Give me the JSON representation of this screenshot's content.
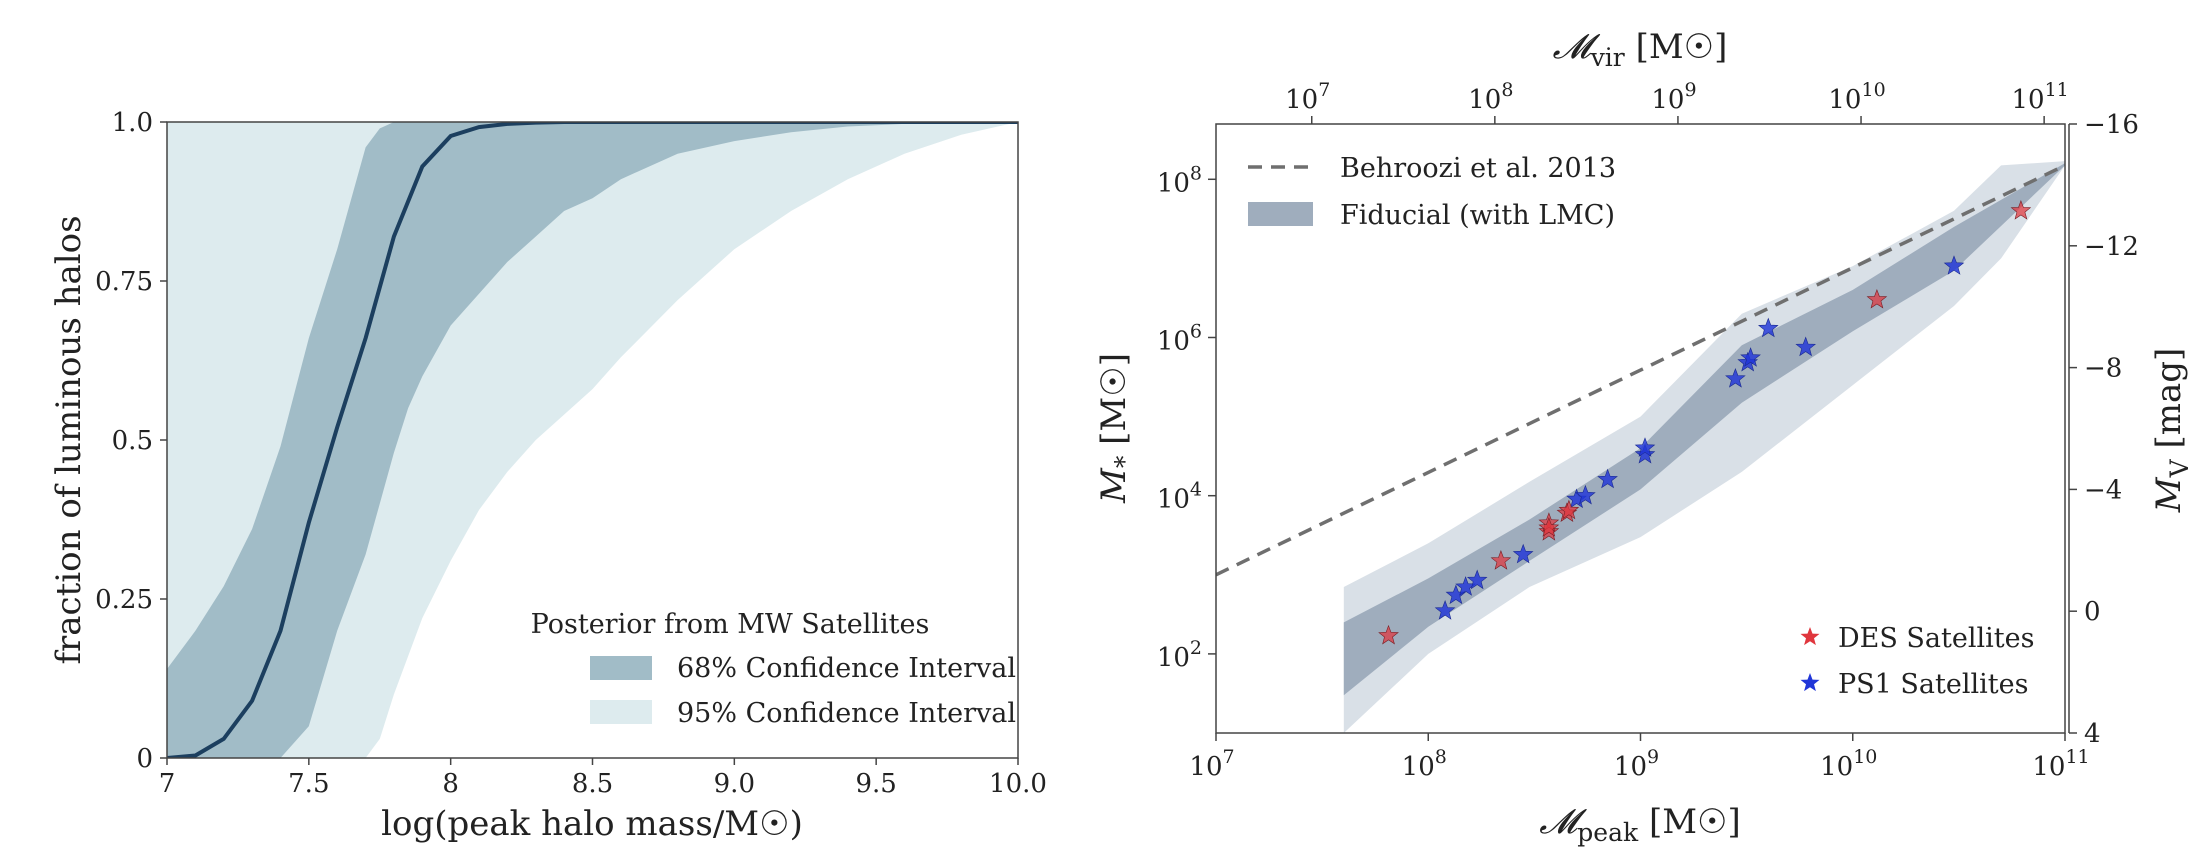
{
  "chart_data": [
    {
      "type": "area",
      "xlabel": "log(peak halo mass/M☉)",
      "ylabel": "fraction of luminous halos",
      "xlim": [
        7,
        10
      ],
      "ylim": [
        0,
        1
      ],
      "x_ticks": [
        "7",
        "7.5",
        "8",
        "8.5",
        "9.0",
        "9.5",
        "10.0"
      ],
      "y_ticks": [
        "0",
        "0.25",
        "0.5",
        "0.75",
        "1.0"
      ],
      "legend": {
        "title": "Posterior from MW Satellites",
        "entries": [
          "68% Confidence Interval",
          "95% Confidence Interval"
        ],
        "placement": "lower-right"
      },
      "colors": {
        "band95": "#ddebee",
        "band68": "#a1bcc7",
        "median": "#1c3f5f"
      },
      "series": [
        {
          "x": [
            7.0,
            7.1,
            7.2,
            7.3,
            7.4,
            7.5,
            7.6,
            7.7,
            7.8,
            7.9,
            8.0,
            8.1,
            8.2,
            8.3,
            8.4,
            8.5,
            8.7,
            9.0,
            9.5,
            10.0
          ],
          "y": [
            0.0,
            0.004,
            0.03,
            0.09,
            0.2,
            0.37,
            0.52,
            0.66,
            0.82,
            0.93,
            0.978,
            0.992,
            0.997,
            0.999,
            1.0,
            1.0,
            1.0,
            1.0,
            1.0,
            1.0
          ]
        },
        {
          "x": [
            7.0,
            7.1,
            7.2,
            7.3,
            7.4,
            7.5,
            7.6,
            7.7,
            7.75,
            7.8,
            7.85,
            7.9,
            8.0,
            8.1,
            8.2,
            8.3,
            8.4,
            8.5,
            8.6,
            8.8,
            9.0,
            9.2,
            9.4,
            9.6,
            10.0
          ],
          "lower": [
            0,
            0,
            0,
            0,
            0,
            0.05,
            0.2,
            0.32,
            0.4,
            0.48,
            0.55,
            0.6,
            0.68,
            0.73,
            0.78,
            0.82,
            0.86,
            0.88,
            0.91,
            0.95,
            0.97,
            0.984,
            0.993,
            0.997,
            1.0
          ],
          "upper": [
            0.14,
            0.2,
            0.27,
            0.36,
            0.49,
            0.66,
            0.8,
            0.96,
            0.99,
            1.0,
            1.0,
            1.0,
            1.0,
            1.0,
            1.0,
            1.0,
            1.0,
            1.0,
            1.0,
            1.0,
            1.0,
            1.0,
            1.0,
            1.0,
            1.0
          ]
        },
        {
          "x": [
            7.0,
            7.5,
            7.6,
            7.7,
            7.75,
            7.8,
            7.9,
            8.0,
            8.1,
            8.2,
            8.3,
            8.4,
            8.5,
            8.6,
            8.8,
            9.0,
            9.2,
            9.4,
            9.6,
            9.8,
            10.0
          ],
          "lower": [
            0,
            0,
            0,
            0,
            0.03,
            0.1,
            0.22,
            0.31,
            0.39,
            0.45,
            0.5,
            0.54,
            0.58,
            0.63,
            0.72,
            0.8,
            0.86,
            0.91,
            0.95,
            0.98,
            1.0
          ],
          "upper": [
            1,
            1,
            1,
            1,
            1,
            1,
            1,
            1,
            1,
            1,
            1,
            1,
            1,
            1,
            1,
            1,
            1,
            1,
            1,
            1,
            1
          ]
        }
      ]
    },
    {
      "type": "scatter",
      "xlabel": "𝓜",
      "xlabel_sub": "peak",
      "xlabel_unit": " [M☉]",
      "top_xlabel": "𝓜",
      "top_xlabel_sub": "vir",
      "top_xlabel_unit": " [M☉]",
      "ylabel": "M",
      "ylabel_sub": "*",
      "ylabel_unit": " [M☉]",
      "right_ylabel": "M",
      "right_ylabel_sub": "V",
      "right_ylabel_unit": " [mag]",
      "xscale": "log",
      "yscale": "log",
      "xlim": [
        10000000,
        100000000000
      ],
      "ylim": [
        10,
        500000000
      ],
      "top_xlim": [
        3000000,
        130000000000
      ],
      "right_ylim": [
        -16,
        4
      ],
      "x_ticks": [
        {
          "base": "10",
          "exp": "7"
        },
        {
          "base": "10",
          "exp": "8"
        },
        {
          "base": "10",
          "exp": "9"
        },
        {
          "base": "10",
          "exp": "10"
        },
        {
          "base": "10",
          "exp": "11"
        }
      ],
      "top_x_ticks": [
        {
          "base": "10",
          "exp": "7"
        },
        {
          "base": "10",
          "exp": "8"
        },
        {
          "base": "10",
          "exp": "9"
        },
        {
          "base": "10",
          "exp": "10"
        },
        {
          "base": "10",
          "exp": "11"
        }
      ],
      "y_ticks": [
        {
          "base": "10",
          "exp": "2"
        },
        {
          "base": "10",
          "exp": "4"
        },
        {
          "base": "10",
          "exp": "6"
        },
        {
          "base": "10",
          "exp": "8"
        }
      ],
      "right_y_ticks": [
        "−16",
        "−12",
        "−8",
        "−4",
        "0",
        "4"
      ],
      "legend_upper": {
        "entries": [
          "Behroozi et al. 2013",
          "Fiducial (with LMC)"
        ],
        "placement": "upper-left"
      },
      "legend_lower": {
        "entries": [
          "DES Satellites",
          "PS1 Satellites"
        ],
        "placement": "lower-right"
      },
      "colors": {
        "band95": "#d9e0e7",
        "band68": "#9fadbd",
        "relation": "#6f6f6f",
        "des": "#e0363d",
        "ps1": "#2136d8"
      },
      "relation": {
        "x": [
          10000000,
          100000000000
        ],
        "y": [
          1000,
          150000000
        ]
      },
      "band95": {
        "x": [
          40000000,
          100000000,
          300000000,
          1000000000,
          3000000000,
          10000000000,
          30000000000,
          50000000000,
          100000000000
        ],
        "lower": [
          10,
          100,
          700,
          3000,
          20000,
          250000,
          2500000,
          10000000,
          150000000
        ],
        "upper": [
          700,
          2500,
          15000,
          100000,
          2000000,
          8000000,
          40000000,
          150000000,
          170000000
        ]
      },
      "band68": {
        "x": [
          40000000,
          100000000,
          300000000,
          1000000000,
          3000000000,
          10000000000,
          30000000000,
          100000000000
        ],
        "lower": [
          30,
          220,
          1500,
          12000,
          150000,
          1200000,
          7000000,
          150000000
        ],
        "upper": [
          250,
          900,
          5000,
          40000,
          800000,
          4000000,
          25000000,
          160000000
        ]
      },
      "des": {
        "x": [
          65000000,
          220000000,
          370000000,
          370000000,
          370000000,
          450000000,
          460000000,
          13000000000,
          62000000000
        ],
        "y": [
          170,
          1500,
          3500,
          4500,
          3900,
          6000,
          6500,
          3000000,
          40000000
        ]
      },
      "ps1": {
        "x": [
          120000000,
          135000000,
          150000000,
          170000000,
          280000000,
          500000000,
          550000000,
          700000000,
          1050000000,
          1050000000,
          2800000000,
          3200000000,
          3300000000,
          4000000000,
          6000000000,
          30000000000
        ],
        "y": [
          350,
          550,
          700,
          850,
          1800,
          9000,
          10000,
          16000,
          33000,
          40000,
          300000,
          480000,
          550000,
          1300000,
          750000,
          8000000
        ]
      }
    }
  ]
}
